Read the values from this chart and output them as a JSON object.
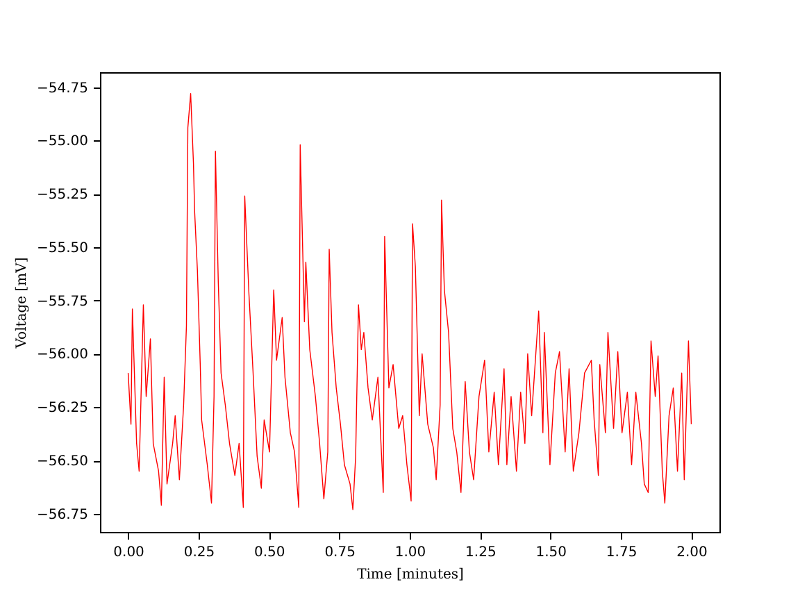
{
  "chart_data": {
    "type": "line",
    "xlabel": "Time [minutes]",
    "ylabel": "Voltage [mV]",
    "xlim": [
      -0.1,
      2.1
    ],
    "ylim": [
      -56.835,
      -54.68
    ],
    "xticks": [
      {
        "value": 0,
        "label": "0.00"
      },
      {
        "value": 0.25,
        "label": "0.25"
      },
      {
        "value": 0.5,
        "label": "0.50"
      },
      {
        "value": 0.75,
        "label": "0.75"
      },
      {
        "value": 1,
        "label": "1.00"
      },
      {
        "value": 1.25,
        "label": "1.25"
      },
      {
        "value": 1.5,
        "label": "1.50"
      },
      {
        "value": 1.75,
        "label": "1.75"
      },
      {
        "value": 2,
        "label": "2.00"
      }
    ],
    "yticks": [
      {
        "value": -56.75,
        "label": "−56.75"
      },
      {
        "value": -56.5,
        "label": "−56.50"
      },
      {
        "value": -56.25,
        "label": "−56.25"
      },
      {
        "value": -56,
        "label": "−56.00"
      },
      {
        "value": -55.75,
        "label": "−55.75"
      },
      {
        "value": -55.5,
        "label": "−55.50"
      },
      {
        "value": -55.25,
        "label": "−55.25"
      },
      {
        "value": -55,
        "label": "−55.00"
      },
      {
        "value": -54.75,
        "label": "−54.75"
      }
    ],
    "grid": false,
    "marker": "none",
    "line_style": "solid",
    "x": [
      0,
      0.01,
      0.015,
      0.03,
      0.039,
      0.054,
      0.064,
      0.079,
      0.089,
      0.108,
      0.118,
      0.128,
      0.138,
      0.158,
      0.167,
      0.182,
      0.197,
      0.207,
      0.212,
      0.222,
      0.232,
      0.236,
      0.246,
      0.256,
      0.261,
      0.281,
      0.296,
      0.305,
      0.31,
      0.32,
      0.33,
      0.345,
      0.36,
      0.379,
      0.394,
      0.409,
      0.414,
      0.429,
      0.443,
      0.458,
      0.473,
      0.483,
      0.502,
      0.517,
      0.527,
      0.547,
      0.557,
      0.576,
      0.591,
      0.606,
      0.611,
      0.626,
      0.631,
      0.645,
      0.665,
      0.68,
      0.695,
      0.709,
      0.714,
      0.724,
      0.739,
      0.754,
      0.768,
      0.788,
      0.798,
      0.808,
      0.818,
      0.828,
      0.837,
      0.852,
      0.867,
      0.887,
      0.906,
      0.911,
      0.926,
      0.941,
      0.961,
      0.975,
      0.99,
      1.005,
      1.01,
      1.02,
      1.034,
      1.044,
      1.064,
      1.084,
      1.094,
      1.108,
      1.113,
      1.123,
      1.138,
      1.153,
      1.167,
      1.182,
      1.197,
      1.212,
      1.227,
      1.246,
      1.266,
      1.281,
      1.3,
      1.315,
      1.335,
      1.345,
      1.36,
      1.379,
      1.394,
      1.409,
      1.419,
      1.433,
      1.458,
      1.473,
      1.478,
      1.498,
      1.517,
      1.532,
      1.552,
      1.566,
      1.581,
      1.601,
      1.621,
      1.645,
      1.655,
      1.67,
      1.675,
      1.695,
      1.704,
      1.724,
      1.739,
      1.754,
      1.773,
      1.788,
      1.803,
      1.823,
      1.833,
      1.847,
      1.857,
      1.872,
      1.882,
      1.897,
      1.906,
      1.921,
      1.936,
      1.951,
      1.966,
      1.975,
      1.99,
      2.0
    ],
    "series": [
      {
        "color": "#ff0000",
        "values": [
          -56.09,
          -56.33,
          -55.79,
          -56.42,
          -56.55,
          -55.77,
          -56.2,
          -55.93,
          -56.42,
          -56.55,
          -56.71,
          -56.11,
          -56.61,
          -56.42,
          -56.29,
          -56.59,
          -56.24,
          -55.87,
          -54.94,
          -54.78,
          -55.11,
          -55.33,
          -55.61,
          -56.05,
          -56.31,
          -56.52,
          -56.7,
          -56.2,
          -55.05,
          -55.66,
          -56.09,
          -56.24,
          -56.42,
          -56.57,
          -56.42,
          -56.72,
          -55.26,
          -55.72,
          -56.07,
          -56.48,
          -56.63,
          -56.31,
          -56.46,
          -55.7,
          -56.03,
          -55.83,
          -56.11,
          -56.37,
          -56.46,
          -56.72,
          -55.02,
          -55.85,
          -55.57,
          -55.98,
          -56.2,
          -56.42,
          -56.68,
          -56.46,
          -55.51,
          -55.9,
          -56.16,
          -56.33,
          -56.52,
          -56.61,
          -56.73,
          -56.48,
          -55.77,
          -55.98,
          -55.9,
          -56.16,
          -56.31,
          -56.11,
          -56.65,
          -55.45,
          -56.16,
          -56.05,
          -56.35,
          -56.29,
          -56.52,
          -56.69,
          -55.39,
          -55.59,
          -56.29,
          -56.0,
          -56.33,
          -56.44,
          -56.59,
          -56.24,
          -55.28,
          -55.7,
          -55.9,
          -56.35,
          -56.46,
          -56.65,
          -56.13,
          -56.46,
          -56.59,
          -56.2,
          -56.03,
          -56.46,
          -56.18,
          -56.52,
          -56.07,
          -56.52,
          -56.2,
          -56.55,
          -56.18,
          -56.42,
          -56.0,
          -56.29,
          -55.8,
          -56.37,
          -55.9,
          -56.52,
          -56.09,
          -55.99,
          -56.46,
          -56.07,
          -56.55,
          -56.37,
          -56.09,
          -56.03,
          -56.31,
          -56.57,
          -56.05,
          -56.37,
          -55.9,
          -56.35,
          -55.99,
          -56.37,
          -56.18,
          -56.52,
          -56.18,
          -56.42,
          -56.61,
          -56.65,
          -55.94,
          -56.2,
          -56.01,
          -56.55,
          -56.7,
          -56.29,
          -56.16,
          -56.55,
          -56.09,
          -56.59,
          -55.94,
          -56.33
        ]
      }
    ]
  }
}
